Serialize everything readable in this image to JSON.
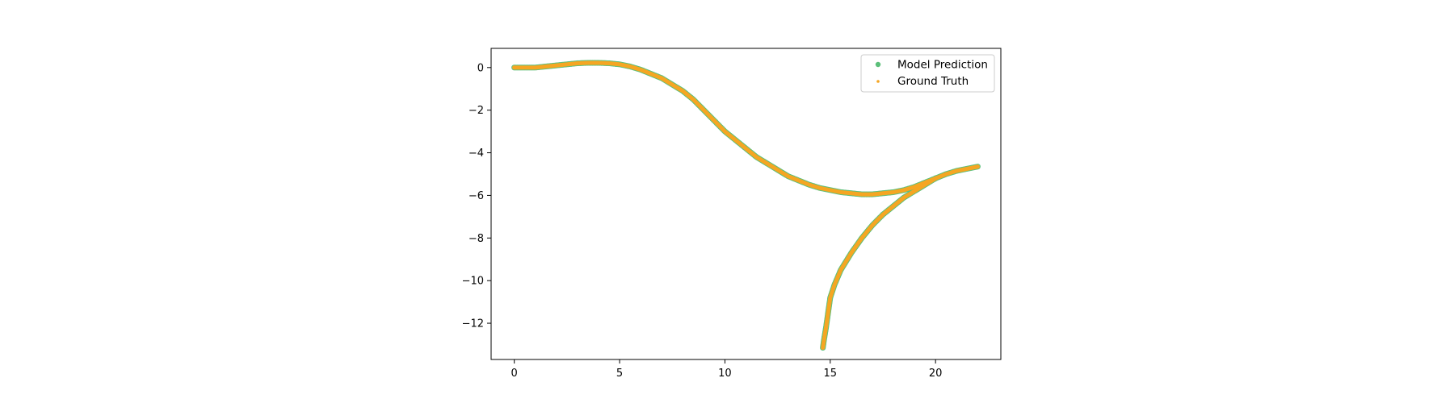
{
  "chart_data": {
    "type": "scatter",
    "title": "",
    "xlabel": "",
    "ylabel": "",
    "xlim": [
      -1.1,
      23.1
    ],
    "ylim": [
      -13.7,
      0.9
    ],
    "xticks": [
      0,
      5,
      10,
      15,
      20
    ],
    "xtick_labels": [
      "0",
      "5",
      "10",
      "15",
      "20"
    ],
    "yticks": [
      0,
      -2,
      -4,
      -6,
      -8,
      -10,
      -12
    ],
    "ytick_labels": [
      "0",
      "−2",
      "−4",
      "−6",
      "−8",
      "−10",
      "−12"
    ],
    "grid": false,
    "legend": "top-right",
    "series": [
      {
        "name": "Model Prediction",
        "color": "#5cbf7a",
        "marker": "circle",
        "points": [
          [
            0,
            0
          ],
          [
            0.5,
            0
          ],
          [
            1,
            0
          ],
          [
            1.5,
            0.05
          ],
          [
            2,
            0.1
          ],
          [
            2.5,
            0.15
          ],
          [
            3,
            0.2
          ],
          [
            3.5,
            0.22
          ],
          [
            4,
            0.22
          ],
          [
            4.5,
            0.2
          ],
          [
            5,
            0.15
          ],
          [
            5.5,
            0.05
          ],
          [
            6,
            -0.1
          ],
          [
            6.5,
            -0.3
          ],
          [
            7,
            -0.5
          ],
          [
            7.5,
            -0.8
          ],
          [
            8,
            -1.1
          ],
          [
            8.5,
            -1.5
          ],
          [
            9,
            -2.0
          ],
          [
            9.5,
            -2.5
          ],
          [
            10,
            -3.0
          ],
          [
            10.5,
            -3.4
          ],
          [
            11,
            -3.8
          ],
          [
            11.5,
            -4.2
          ],
          [
            12,
            -4.5
          ],
          [
            12.5,
            -4.8
          ],
          [
            13,
            -5.1
          ],
          [
            13.5,
            -5.3
          ],
          [
            14,
            -5.5
          ],
          [
            14.5,
            -5.65
          ],
          [
            15,
            -5.75
          ],
          [
            15.5,
            -5.85
          ],
          [
            16,
            -5.9
          ],
          [
            16.5,
            -5.95
          ],
          [
            17,
            -5.95
          ],
          [
            17.5,
            -5.9
          ],
          [
            18,
            -5.85
          ],
          [
            18.5,
            -5.75
          ],
          [
            19,
            -5.6
          ],
          [
            19.5,
            -5.4
          ],
          [
            20,
            -5.2
          ],
          [
            20.5,
            -5.0
          ],
          [
            21,
            -4.85
          ],
          [
            21.5,
            -4.75
          ],
          [
            22,
            -4.65
          ],
          [
            19.5,
            -5.5
          ],
          [
            19,
            -5.8
          ],
          [
            18.5,
            -6.1
          ],
          [
            18,
            -6.5
          ],
          [
            17.5,
            -6.9
          ],
          [
            17,
            -7.4
          ],
          [
            16.5,
            -8.0
          ],
          [
            16,
            -8.7
          ],
          [
            15.5,
            -9.5
          ],
          [
            15.2,
            -10.2
          ],
          [
            15,
            -10.8
          ],
          [
            14.9,
            -11.5
          ],
          [
            14.8,
            -12.2
          ],
          [
            14.7,
            -12.8
          ],
          [
            14.65,
            -13.15
          ]
        ]
      },
      {
        "name": "Ground Truth",
        "color": "#f5a623",
        "marker": "point",
        "points": [
          [
            0,
            0
          ],
          [
            0.5,
            0
          ],
          [
            1,
            0
          ],
          [
            1.5,
            0.05
          ],
          [
            2,
            0.1
          ],
          [
            2.5,
            0.15
          ],
          [
            3,
            0.2
          ],
          [
            3.5,
            0.22
          ],
          [
            4,
            0.22
          ],
          [
            4.5,
            0.2
          ],
          [
            5,
            0.15
          ],
          [
            5.5,
            0.05
          ],
          [
            6,
            -0.1
          ],
          [
            6.5,
            -0.3
          ],
          [
            7,
            -0.5
          ],
          [
            7.5,
            -0.8
          ],
          [
            8,
            -1.1
          ],
          [
            8.5,
            -1.5
          ],
          [
            9,
            -2.0
          ],
          [
            9.5,
            -2.5
          ],
          [
            10,
            -3.0
          ],
          [
            10.5,
            -3.4
          ],
          [
            11,
            -3.8
          ],
          [
            11.5,
            -4.2
          ],
          [
            12,
            -4.5
          ],
          [
            12.5,
            -4.8
          ],
          [
            13,
            -5.1
          ],
          [
            13.5,
            -5.3
          ],
          [
            14,
            -5.5
          ],
          [
            14.5,
            -5.65
          ],
          [
            15,
            -5.75
          ],
          [
            15.5,
            -5.85
          ],
          [
            16,
            -5.9
          ],
          [
            16.5,
            -5.95
          ],
          [
            17,
            -5.95
          ],
          [
            17.5,
            -5.9
          ],
          [
            18,
            -5.85
          ],
          [
            18.5,
            -5.75
          ],
          [
            19,
            -5.6
          ],
          [
            19.5,
            -5.4
          ],
          [
            20,
            -5.2
          ],
          [
            20.5,
            -5.0
          ],
          [
            21,
            -4.85
          ],
          [
            21.5,
            -4.75
          ],
          [
            22,
            -4.65
          ],
          [
            19.5,
            -5.5
          ],
          [
            19,
            -5.8
          ],
          [
            18.5,
            -6.1
          ],
          [
            18,
            -6.5
          ],
          [
            17.5,
            -6.9
          ],
          [
            17,
            -7.4
          ],
          [
            16.5,
            -8.0
          ],
          [
            16,
            -8.7
          ],
          [
            15.5,
            -9.5
          ],
          [
            15.2,
            -10.2
          ],
          [
            15,
            -10.8
          ],
          [
            14.9,
            -11.5
          ],
          [
            14.8,
            -12.2
          ],
          [
            14.7,
            -12.8
          ],
          [
            14.65,
            -13.15
          ]
        ]
      }
    ]
  }
}
